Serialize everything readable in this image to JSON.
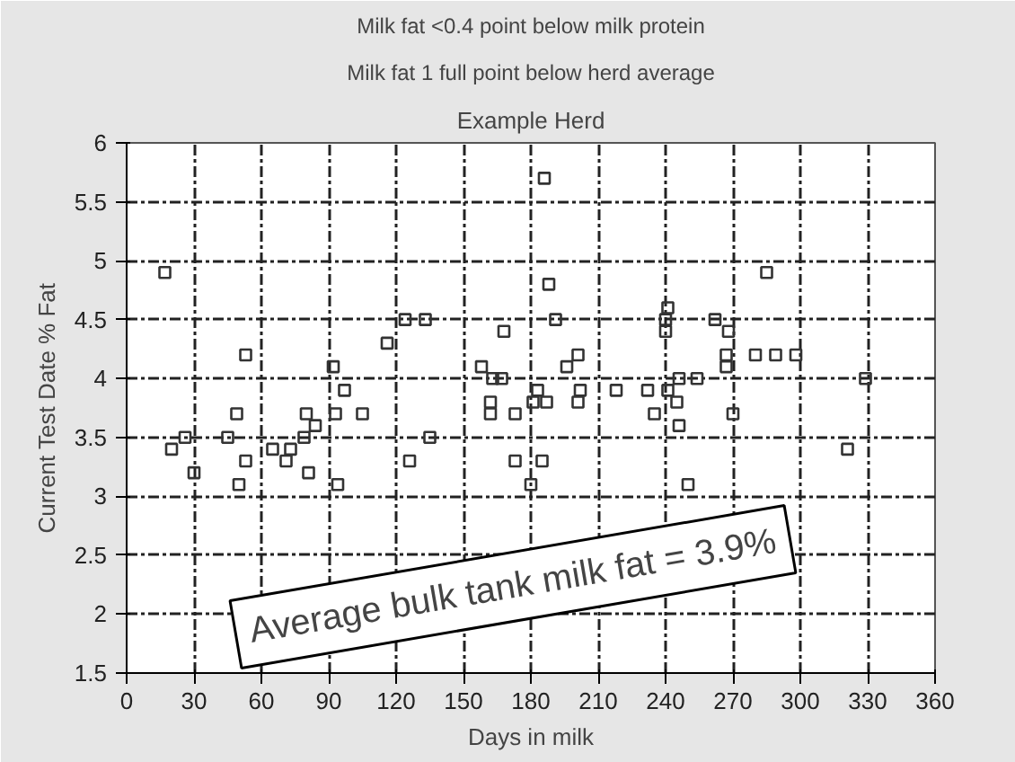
{
  "chart_data": {
    "type": "scatter",
    "title": "Example Herd",
    "xlabel": "Days in milk",
    "ylabel": "Current Test Date % Fat",
    "annotations": [
      "Milk fat <0.4 point below milk protein",
      "Milk fat 1 full point below herd average",
      "Average bulk tank milk fat = 3.9%"
    ],
    "series": [
      {
        "color": "#333333",
        "x": [
          17,
          53,
          92,
          97,
          49,
          80,
          84,
          93,
          105,
          26,
          45,
          79,
          20,
          65,
          73,
          53,
          71,
          30,
          81,
          50,
          94,
          186,
          188,
          124,
          133,
          191,
          168,
          116,
          201,
          196,
          158,
          163,
          167,
          183,
          202,
          218,
          232,
          181,
          187,
          201,
          162,
          162,
          173,
          235,
          135,
          126,
          173,
          185,
          180,
          285,
          241,
          240,
          240,
          262,
          268,
          267,
          267,
          280,
          289,
          298,
          246,
          254,
          329,
          241,
          245,
          270,
          246,
          321,
          250
        ],
        "values": [
          4.9,
          4.2,
          4.1,
          3.9,
          3.7,
          3.7,
          3.6,
          3.7,
          3.7,
          3.5,
          3.5,
          3.5,
          3.4,
          3.4,
          3.4,
          3.3,
          3.3,
          3.2,
          3.2,
          3.1,
          3.1,
          5.7,
          4.8,
          4.5,
          4.5,
          4.5,
          4.4,
          4.3,
          4.2,
          4.1,
          4.1,
          4.0,
          4.0,
          3.9,
          3.9,
          3.9,
          3.9,
          3.8,
          3.8,
          3.8,
          3.8,
          3.7,
          3.7,
          3.7,
          3.5,
          3.3,
          3.3,
          3.3,
          3.1,
          4.9,
          4.6,
          4.5,
          4.4,
          4.5,
          4.4,
          4.2,
          4.1,
          4.2,
          4.2,
          4.2,
          4.0,
          4.0,
          4.0,
          3.9,
          3.8,
          3.7,
          3.6,
          3.4,
          3.1
        ]
      }
    ],
    "xlim": [
      0,
      360
    ],
    "xticks": [
      0,
      30,
      60,
      90,
      120,
      150,
      180,
      210,
      240,
      270,
      300,
      330,
      360
    ],
    "ylim": [
      1.5,
      6
    ],
    "yticks": [
      1.5,
      2,
      2.5,
      3,
      3.5,
      4,
      4.5,
      5,
      5.5,
      6
    ],
    "grid": true,
    "marker": "square"
  }
}
